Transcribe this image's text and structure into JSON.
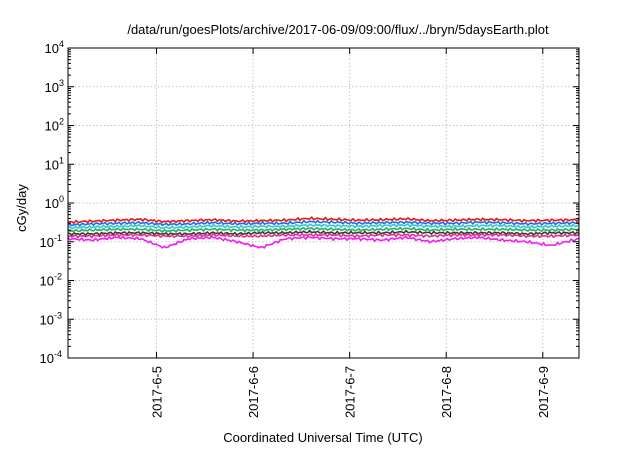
{
  "chart_data": {
    "type": "line",
    "title": "/data/run/goesPlots/archive/2017-06-09/09:00/flux/../bryn/5daysEarth.plot",
    "xlabel": "Coordinated Universal Time (UTC)",
    "ylabel": "cGy/day",
    "yscale": "log",
    "ylim": [
      0.0001,
      10000
    ],
    "xlim": [
      "2017-06-04T02:00",
      "2017-06-09T09:00"
    ],
    "x_tick_labels": [
      "2017-6-5",
      "2017-6-6",
      "2017-6-7",
      "2017-6-8",
      "2017-6-9"
    ],
    "x_tick_values": [
      "2017-06-05T00:00",
      "2017-06-06T00:00",
      "2017-06-07T00:00",
      "2017-06-08T00:00",
      "2017-06-09T00:00"
    ],
    "y_ticks": [
      {
        "base": "10",
        "exp": "-4",
        "value": 0.0001
      },
      {
        "base": "10",
        "exp": "-3",
        "value": 0.001
      },
      {
        "base": "10",
        "exp": "-2",
        "value": 0.01
      },
      {
        "base": "10",
        "exp": "-1",
        "value": 0.1
      },
      {
        "base": "10",
        "exp": "0",
        "value": 1
      },
      {
        "base": "10",
        "exp": "1",
        "value": 10
      },
      {
        "base": "10",
        "exp": "2",
        "value": 100
      },
      {
        "base": "10",
        "exp": "3",
        "value": 1000
      },
      {
        "base": "10",
        "exp": "4",
        "value": 10000
      }
    ],
    "grid": true,
    "x": [
      "2017-06-04T02:00",
      "2017-06-04T08:00",
      "2017-06-04T14:00",
      "2017-06-04T20:00",
      "2017-06-05T02:00",
      "2017-06-05T08:00",
      "2017-06-05T14:00",
      "2017-06-05T20:00",
      "2017-06-06T02:00",
      "2017-06-06T08:00",
      "2017-06-06T14:00",
      "2017-06-06T20:00",
      "2017-06-07T02:00",
      "2017-06-07T08:00",
      "2017-06-07T14:00",
      "2017-06-07T20:00",
      "2017-06-08T02:00",
      "2017-06-08T08:00",
      "2017-06-08T14:00",
      "2017-06-08T20:00",
      "2017-06-09T02:00",
      "2017-06-09T09:00"
    ],
    "series": [
      {
        "color": "#e8141c",
        "values": [
          0.32,
          0.34,
          0.36,
          0.38,
          0.33,
          0.35,
          0.37,
          0.34,
          0.35,
          0.36,
          0.4,
          0.38,
          0.36,
          0.37,
          0.39,
          0.35,
          0.36,
          0.38,
          0.37,
          0.35,
          0.36,
          0.37
        ]
      },
      {
        "color": "#1f6fe0",
        "values": [
          0.27,
          0.29,
          0.3,
          0.31,
          0.28,
          0.29,
          0.31,
          0.29,
          0.3,
          0.3,
          0.33,
          0.32,
          0.3,
          0.31,
          0.32,
          0.3,
          0.3,
          0.32,
          0.31,
          0.29,
          0.3,
          0.31
        ]
      },
      {
        "color": "#2ec7d8",
        "values": [
          0.23,
          0.24,
          0.25,
          0.26,
          0.23,
          0.24,
          0.26,
          0.24,
          0.25,
          0.25,
          0.27,
          0.26,
          0.25,
          0.26,
          0.27,
          0.25,
          0.25,
          0.26,
          0.26,
          0.24,
          0.25,
          0.26
        ]
      },
      {
        "color": "#22b35a",
        "values": [
          0.19,
          0.2,
          0.21,
          0.21,
          0.19,
          0.2,
          0.21,
          0.2,
          0.2,
          0.21,
          0.22,
          0.21,
          0.2,
          0.21,
          0.22,
          0.2,
          0.21,
          0.21,
          0.21,
          0.2,
          0.2,
          0.21
        ]
      },
      {
        "color": "#3a3a3a",
        "values": [
          0.16,
          0.16,
          0.17,
          0.17,
          0.16,
          0.16,
          0.17,
          0.16,
          0.17,
          0.17,
          0.18,
          0.17,
          0.17,
          0.17,
          0.18,
          0.17,
          0.17,
          0.17,
          0.17,
          0.16,
          0.17,
          0.17
        ]
      },
      {
        "color": "#e0308e",
        "values": [
          0.14,
          0.14,
          0.15,
          0.15,
          0.14,
          0.14,
          0.15,
          0.14,
          0.14,
          0.15,
          0.15,
          0.15,
          0.14,
          0.15,
          0.15,
          0.14,
          0.15,
          0.15,
          0.15,
          0.14,
          0.14,
          0.15
        ]
      },
      {
        "color": "#f21cf2",
        "values": [
          0.12,
          0.11,
          0.13,
          0.12,
          0.07,
          0.12,
          0.13,
          0.1,
          0.07,
          0.12,
          0.13,
          0.12,
          0.12,
          0.11,
          0.13,
          0.1,
          0.12,
          0.13,
          0.11,
          0.1,
          0.08,
          0.12
        ]
      }
    ]
  }
}
